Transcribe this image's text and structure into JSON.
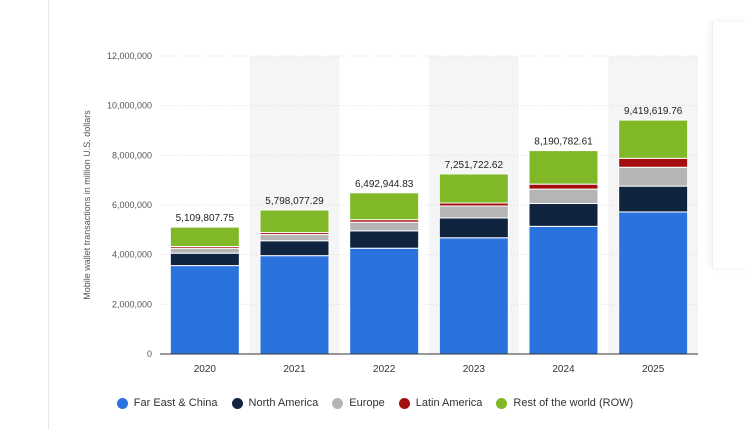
{
  "chart_data": {
    "type": "bar",
    "stacked": true,
    "categories": [
      "2020",
      "2021",
      "2022",
      "2023",
      "2024",
      "2025"
    ],
    "series": [
      {
        "name": "Far East & China",
        "color": "#2a72de",
        "values": [
          3560000,
          3960000,
          4260000,
          4680000,
          5140000,
          5720000
        ]
      },
      {
        "name": "North America",
        "color": "#10233f",
        "values": [
          500000,
          600000,
          700000,
          800000,
          920000,
          1040000
        ]
      },
      {
        "name": "Europe",
        "color": "#b5b5b5",
        "values": [
          200000,
          250000,
          350000,
          480000,
          580000,
          760000
        ]
      },
      {
        "name": "Latin America",
        "color": "#a40e0e",
        "values": [
          70000,
          80000,
          100000,
          120000,
          200000,
          360000
        ]
      },
      {
        "name": "Rest of the world (ROW)",
        "color": "#80b828",
        "values": [
          779807.75,
          908077.29,
          1082944.83,
          1171722.62,
          1350782.61,
          1539619.76
        ]
      }
    ],
    "totals": [
      "5,109,807.75",
      "5,798,077.29",
      "6,492,944.83",
      "7,251,722.62",
      "8,190,782.61",
      "9,419,619.76"
    ],
    "ylabel": "Mobile wallet transactions in million U.S. dollars",
    "ylim": [
      0,
      12000000
    ],
    "yticks": [
      0,
      2000000,
      4000000,
      6000000,
      8000000,
      10000000,
      12000000
    ],
    "ytick_labels": [
      "0",
      "2,000,000",
      "4,000,000",
      "6,000,000",
      "8,000,000",
      "10,000,000",
      "12,000,000"
    ],
    "grid": true,
    "legend_position": "bottom"
  }
}
